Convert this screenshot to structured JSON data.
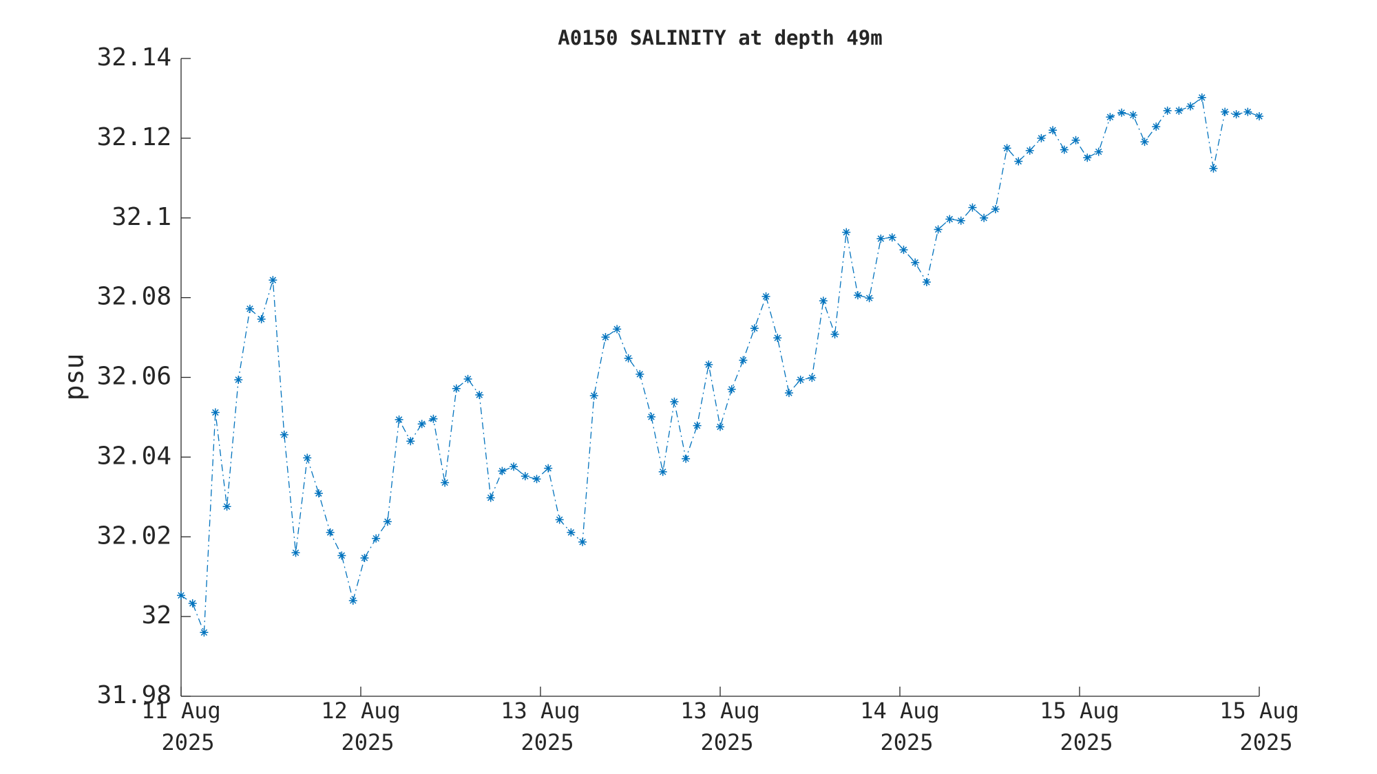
{
  "chart_data": {
    "type": "line",
    "title": "A0150 SALINITY at depth 49m",
    "ylabel": "psu",
    "x": [
      0,
      0.064,
      0.128,
      0.191,
      0.255,
      0.319,
      0.383,
      0.447,
      0.511,
      0.574,
      0.638,
      0.702,
      0.766,
      0.83,
      0.894,
      0.957,
      1.021,
      1.085,
      1.149,
      1.213,
      1.277,
      1.34,
      1.404,
      1.468,
      1.532,
      1.596,
      1.66,
      1.723,
      1.787,
      1.851,
      1.915,
      1.979,
      2.043,
      2.106,
      2.17,
      2.234,
      2.298,
      2.362,
      2.426,
      2.489,
      2.553,
      2.617,
      2.681,
      2.745,
      2.809,
      2.872,
      2.936,
      3.0,
      3.064,
      3.128,
      3.191,
      3.255,
      3.319,
      3.383,
      3.447,
      3.511,
      3.574,
      3.638,
      3.702,
      3.766,
      3.83,
      3.894,
      3.957,
      4.021,
      4.085,
      4.149,
      4.213,
      4.277,
      4.34,
      4.404,
      4.468,
      4.532,
      4.596,
      4.66,
      4.723,
      4.787,
      4.851,
      4.915,
      4.979,
      5.043,
      5.106,
      5.17,
      5.234,
      5.298,
      5.362,
      5.426,
      5.489,
      5.553,
      5.617,
      5.681,
      5.745,
      5.809,
      5.872,
      5.936,
      6.0
    ],
    "values": [
      32.0053,
      32.0033,
      31.996,
      32.0512,
      32.0276,
      32.0594,
      32.0772,
      32.0746,
      32.0844,
      32.0456,
      32.016,
      32.0398,
      32.0309,
      32.0211,
      32.0153,
      32.004,
      32.0147,
      32.0196,
      32.0238,
      32.0494,
      32.044,
      32.0483,
      32.0496,
      32.0336,
      32.0572,
      32.0596,
      32.0556,
      32.0298,
      32.0365,
      32.0376,
      32.0352,
      32.0345,
      32.0372,
      32.0243,
      32.0211,
      32.0187,
      32.0554,
      32.0701,
      32.0721,
      32.0648,
      32.0608,
      32.0501,
      32.0363,
      32.0539,
      32.0396,
      32.0479,
      32.0632,
      32.0476,
      32.057,
      32.0643,
      32.0723,
      32.0803,
      32.0699,
      32.0561,
      32.0594,
      32.0599,
      32.0792,
      32.0708,
      32.0964,
      32.0806,
      32.0799,
      32.0948,
      32.0951,
      32.092,
      32.0888,
      32.0839,
      32.0971,
      32.0997,
      32.0993,
      32.1026,
      32.1,
      32.1022,
      32.1175,
      32.1142,
      32.1169,
      32.12,
      32.122,
      32.1171,
      32.1195,
      32.1151,
      32.1166,
      32.1253,
      32.1264,
      32.1258,
      32.1191,
      32.1229,
      32.1269,
      32.1269,
      32.128,
      32.1302,
      32.1124,
      32.1266,
      32.126,
      32.1266,
      32.1255
    ],
    "color": "#0072bd",
    "line_style": "dashdot",
    "marker": "asterisk",
    "xlim": [
      0,
      6
    ],
    "xticks": [
      {
        "value": 0,
        "label": "11 Aug\n2025"
      },
      {
        "value": 1,
        "label": "12 Aug\n2025"
      },
      {
        "value": 2,
        "label": "13 Aug\n2025"
      },
      {
        "value": 3,
        "label": "13 Aug\n2025"
      },
      {
        "value": 4,
        "label": "14 Aug\n2025"
      },
      {
        "value": 5,
        "label": "15 Aug\n2025"
      },
      {
        "value": 6,
        "label": "15 Aug\n2025"
      }
    ],
    "ylim": [
      31.98,
      32.14
    ],
    "yticks": [
      31.98,
      32,
      32.02,
      32.04,
      32.06,
      32.08,
      32.1,
      32.12,
      32.14
    ],
    "grid": false
  }
}
